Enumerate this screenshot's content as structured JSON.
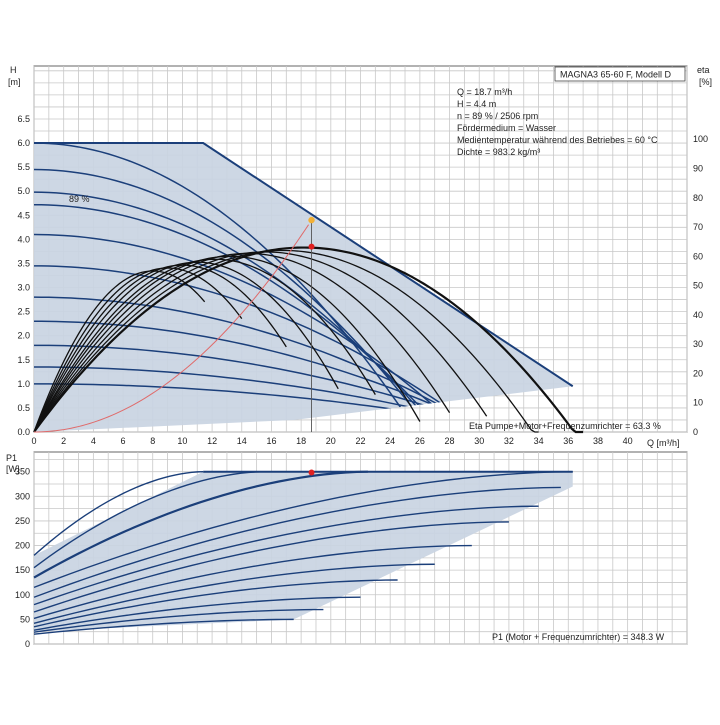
{
  "chart_data": [
    {
      "type": "line",
      "panel": "head",
      "title": "MAGNA3 65-60 F, Modell D",
      "ylabel_top": "H",
      "ylabel_unit": "[m]",
      "y2label_top": "eta",
      "y2label_unit": "[%]",
      "xlabel": "Q [m³/h]",
      "xlim": [
        0,
        44
      ],
      "ylim": [
        0,
        7.6
      ],
      "y2lim": [
        0,
        125
      ],
      "grid": true,
      "x_ticks": [
        0,
        2,
        4,
        6,
        8,
        10,
        12,
        14,
        16,
        18,
        20,
        22,
        24,
        26,
        28,
        30,
        32,
        34,
        36,
        38,
        40
      ],
      "y_ticks": [
        0.0,
        0.5,
        1.0,
        1.5,
        2.0,
        2.5,
        3.0,
        3.5,
        4.0,
        4.5,
        5.0,
        5.5,
        6.0,
        6.5
      ],
      "y_tick_labels": [
        "0.0",
        "0.5",
        "1.0",
        "1.5",
        "2.0",
        "2.5",
        "3.0",
        "3.5",
        "4.0",
        "4.5",
        "5.0",
        "5.5",
        "6.0",
        "6.5"
      ],
      "y2_ticks": [
        0,
        10,
        20,
        30,
        40,
        50,
        60,
        70,
        80,
        90,
        100
      ],
      "info_lines": [
        "Q = 18.7 m³/h",
        "H = 4.4 m",
        "n = 89 % / 2506 rpm",
        "Fördermedium = Wasser",
        "Medientemperatur während des Betriebes = 60 °C",
        "Dichte = 983.2 kg/m³"
      ],
      "curve_label": "89 %",
      "footer_label": "Eta Pumpe+Motor+Frequenzumrichter = 63.3 %",
      "operating_area": [
        [
          0,
          6.0
        ],
        [
          11.4,
          6.0
        ],
        [
          36.3,
          0.95
        ],
        [
          17.5,
          0.25
        ],
        [
          0,
          0.0
        ]
      ],
      "speed_curves": [
        {
          "h0": 6.0,
          "k": 0.009
        },
        {
          "h0": 5.45,
          "k": 0.0076
        },
        {
          "h0": 4.98,
          "k": 0.0067
        },
        {
          "h0": 4.72,
          "k": 0.0062
        },
        {
          "h0": 4.1,
          "k": 0.0049
        },
        {
          "h0": 3.45,
          "k": 0.0038
        },
        {
          "h0": 2.8,
          "k": 0.003
        },
        {
          "h0": 2.3,
          "k": 0.0024
        },
        {
          "h0": 1.8,
          "k": 0.0018
        },
        {
          "h0": 1.35,
          "k": 0.0013
        },
        {
          "h0": 1.0,
          "k": 0.0009
        }
      ],
      "eta_curves": [
        {
          "q0": 18.2,
          "peak": 63,
          "q_end": 37
        },
        {
          "q0": 16.8,
          "peak": 62,
          "q_end": 34
        },
        {
          "q0": 15.6,
          "peak": 61.5,
          "q_end": 30.5
        },
        {
          "q0": 14.4,
          "peak": 61,
          "q_end": 28
        },
        {
          "q0": 13.2,
          "peak": 60,
          "q_end": 26
        },
        {
          "q0": 12.2,
          "peak": 59,
          "q_end": 23.2
        },
        {
          "q0": 11.0,
          "peak": 58,
          "q_end": 20.5
        },
        {
          "q0": 10.0,
          "peak": 57,
          "q_end": 17.2
        },
        {
          "q0": 9.0,
          "peak": 56,
          "q_end": 14.2
        },
        {
          "q0": 8.0,
          "peak": 55,
          "q_end": 11.6
        }
      ],
      "system_curve_k": 0.01258,
      "duty_point": {
        "q": 18.7,
        "h": 4.4
      },
      "eta_point": {
        "q": 18.7,
        "eta": 63.3
      },
      "colors": {
        "area": "#c9d4e2",
        "curve": "#1b3f7a",
        "eta": "#111111",
        "system": "#e06a6a",
        "duty": "#f2b035",
        "eta_marker": "#e02020"
      }
    },
    {
      "type": "line",
      "panel": "power",
      "ylabel_top": "P1",
      "ylabel_unit": "[W]",
      "xlim": [
        0,
        44
      ],
      "ylim": [
        0,
        390
      ],
      "grid": true,
      "y_ticks": [
        0,
        50,
        100,
        150,
        200,
        250,
        300,
        350
      ],
      "footer_label": "P1 (Motor + Frequenzumrichter) = 348.3 W",
      "operating_area": [
        [
          0,
          180
        ],
        [
          11.4,
          350
        ],
        [
          36.3,
          350
        ],
        [
          36.3,
          320
        ],
        [
          17.5,
          50
        ],
        [
          0,
          25
        ],
        [
          0,
          180
        ]
      ],
      "power_curves": [
        {
          "p0": 180,
          "p1": 350,
          "q_end": 11.4
        },
        {
          "p0": 155,
          "p1": 350,
          "q_end": 15.5
        },
        {
          "p0": 135,
          "p1": 350,
          "q_end": 22.5
        },
        {
          "p0": 115,
          "p1": 350,
          "q_end": 36.3
        },
        {
          "p0": 95,
          "p1": 318,
          "q_end": 35.5
        },
        {
          "p0": 80,
          "p1": 280,
          "q_end": 34.0
        },
        {
          "p0": 65,
          "p1": 248,
          "q_end": 32.0
        },
        {
          "p0": 52,
          "p1": 200,
          "q_end": 29.5
        },
        {
          "p0": 42,
          "p1": 162,
          "q_end": 27.0
        },
        {
          "p0": 35,
          "p1": 130,
          "q_end": 24.5
        },
        {
          "p0": 28,
          "p1": 95,
          "q_end": 22.0
        },
        {
          "p0": 24,
          "p1": 70,
          "q_end": 19.5
        },
        {
          "p0": 20,
          "p1": 50,
          "q_end": 17.5
        }
      ],
      "duty_point": {
        "q": 18.7,
        "p": 348.3
      }
    }
  ]
}
